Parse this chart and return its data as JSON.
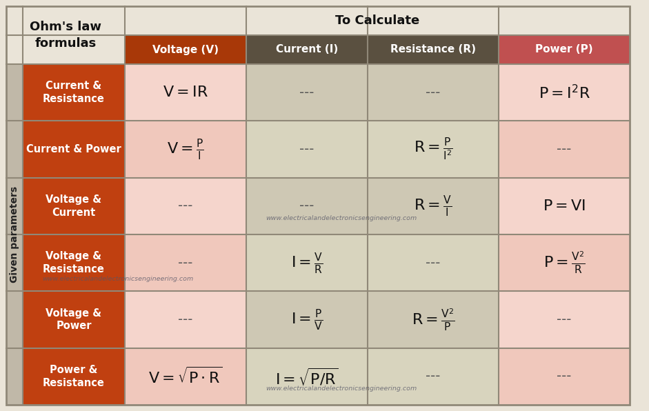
{
  "title_top_left": "Ohm's law\nformulas",
  "title_top_right": "To Calculate",
  "col_headers": [
    "Voltage (V)",
    "Current (I)",
    "Resistance (R)",
    "Power (P)"
  ],
  "row_headers": [
    "Current &\nResistance",
    "Current & Power",
    "Voltage &\nCurrent",
    "Voltage &\nResistance",
    "Voltage &\nPower",
    "Power &\nResistance"
  ],
  "given_label": "Given parameters",
  "watermark": "www.electricalandelectronicsengineering.com",
  "col_header_colors": [
    "#a83808",
    "#5a5040",
    "#5a5040",
    "#c05050"
  ],
  "row_header_color": "#c04010",
  "cell_colors": [
    [
      "#f5d5cc",
      "#cec8b4",
      "#cec8b4",
      "#f5d5cc"
    ],
    [
      "#f0c8bc",
      "#d8d4be",
      "#d8d4be",
      "#f0c8bc"
    ],
    [
      "#f5d5cc",
      "#cec8b4",
      "#cec8b4",
      "#f5d5cc"
    ],
    [
      "#f0c8bc",
      "#d8d4be",
      "#d8d4be",
      "#f0c8bc"
    ],
    [
      "#f5d5cc",
      "#cec8b4",
      "#cec8b4",
      "#f5d5cc"
    ],
    [
      "#f0c8bc",
      "#d8d4be",
      "#d8d4be",
      "#f0c8bc"
    ]
  ],
  "top_left_bg": "#eae4d8",
  "top_right_bg": "#eae4d8",
  "given_bg": "#c0b8a8",
  "outer_bg": "#eae4d8",
  "border_color": "#908878",
  "formulas": [
    [
      "$\\mathregular{V = IR}$",
      "---",
      "---",
      "$\\mathregular{P = I^2R}$"
    ],
    [
      "$\\mathregular{V = \\frac{P}{I}}$",
      "---",
      "$\\mathregular{R = \\frac{P}{I^2}}$",
      "---"
    ],
    [
      "---",
      "---",
      "$\\mathregular{R = \\frac{V}{I}}$",
      "$\\mathregular{P = VI}$"
    ],
    [
      "---",
      "$\\mathregular{I = \\frac{V}{R}}$",
      "---",
      "$\\mathregular{P = \\frac{V^2}{R}}$"
    ],
    [
      "---",
      "$\\mathregular{I = \\frac{P}{V}}$",
      "$\\mathregular{R = \\frac{V^2}{P}}$",
      "---"
    ],
    [
      "$\\mathregular{V = \\sqrt{P \\cdot R}}$",
      "$\\mathregular{I = \\sqrt{P/R}}$",
      "---",
      "---"
    ]
  ]
}
